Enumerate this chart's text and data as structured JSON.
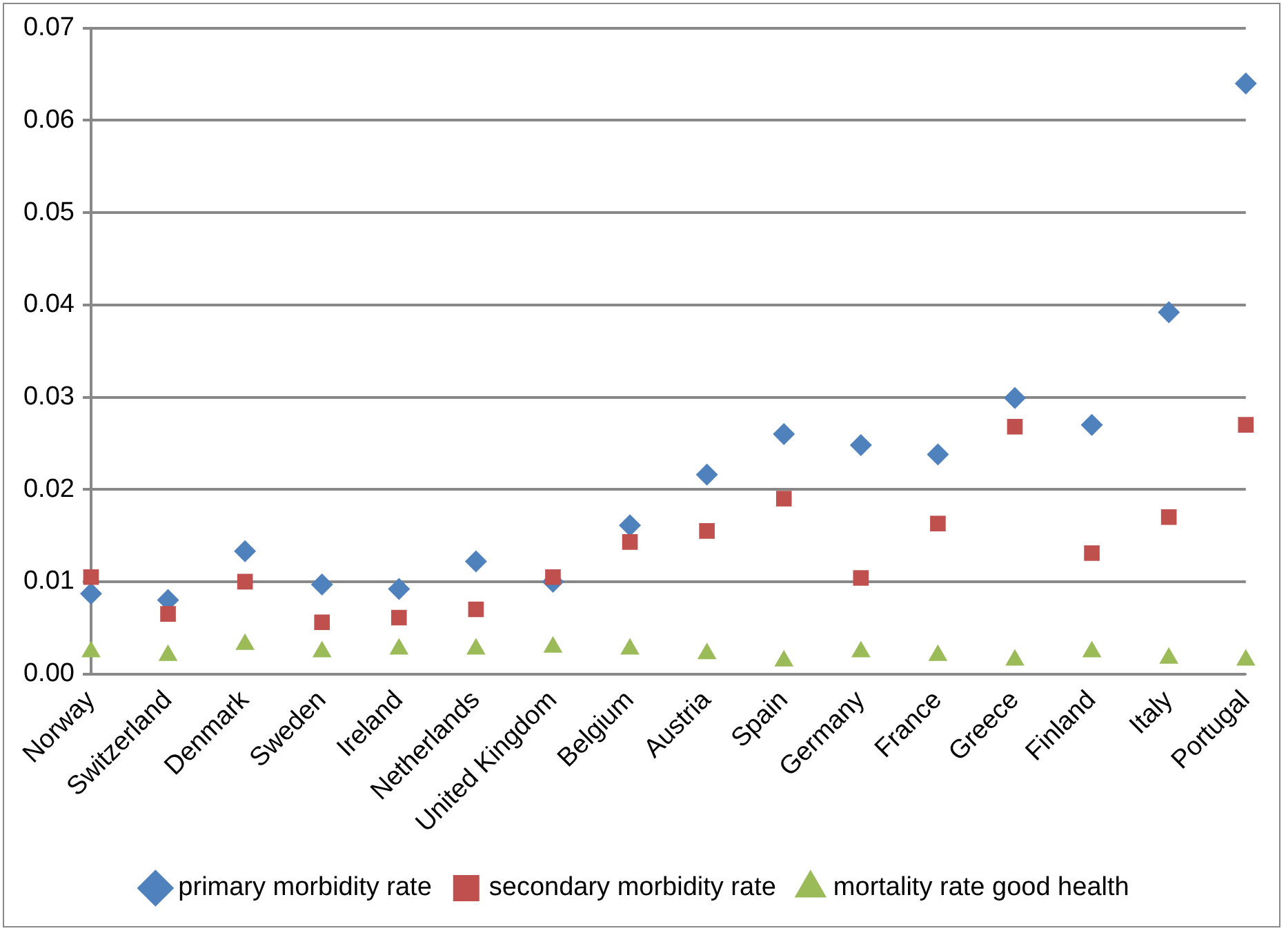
{
  "chart_data": {
    "type": "scatter",
    "categories": [
      "Norway",
      "Switzerland",
      "Denmark",
      "Sweden",
      "Ireland",
      "Netherlands",
      "United Kingdom",
      "Belgium",
      "Austria",
      "Spain",
      "Germany",
      "France",
      "Greece",
      "Finland",
      "Italy",
      "Portugal"
    ],
    "series": [
      {
        "name": "primary morbidity rate",
        "color": "#4f81bd",
        "marker": "diamond",
        "values": [
          0.0087,
          0.008,
          0.0133,
          0.0097,
          0.0092,
          0.0122,
          0.01,
          0.0161,
          0.0216,
          0.026,
          0.0248,
          0.0238,
          0.0299,
          0.027,
          0.0392,
          0.064
        ]
      },
      {
        "name": "secondary morbidity rate",
        "color": "#c0504d",
        "marker": "square",
        "values": [
          0.0105,
          0.0065,
          0.01,
          0.0056,
          0.0061,
          0.007,
          0.0105,
          0.0143,
          0.0155,
          0.019,
          0.0104,
          0.0163,
          0.0268,
          0.0131,
          0.017,
          0.027
        ]
      },
      {
        "name": "mortality rate good health",
        "color": "#9bbb59",
        "marker": "triangle",
        "values": [
          0.0024,
          0.002,
          0.0032,
          0.0024,
          0.0027,
          0.0027,
          0.0029,
          0.0027,
          0.0022,
          0.0014,
          0.0024,
          0.002,
          0.0015,
          0.0024,
          0.0017,
          0.0015
        ]
      }
    ],
    "ylim": [
      0,
      0.07
    ],
    "yticks": [
      {
        "value": 0,
        "label": "0.00"
      },
      {
        "value": 0.01,
        "label": "0.01"
      },
      {
        "value": 0.02,
        "label": "0.02"
      },
      {
        "value": 0.03,
        "label": "0.03"
      },
      {
        "value": 0.04,
        "label": "0.04"
      },
      {
        "value": 0.05,
        "label": "0.05"
      },
      {
        "value": 0.06,
        "label": "0.06"
      },
      {
        "value": 0.07,
        "label": "0.07"
      }
    ],
    "grid": "y",
    "legend": "bottom"
  }
}
